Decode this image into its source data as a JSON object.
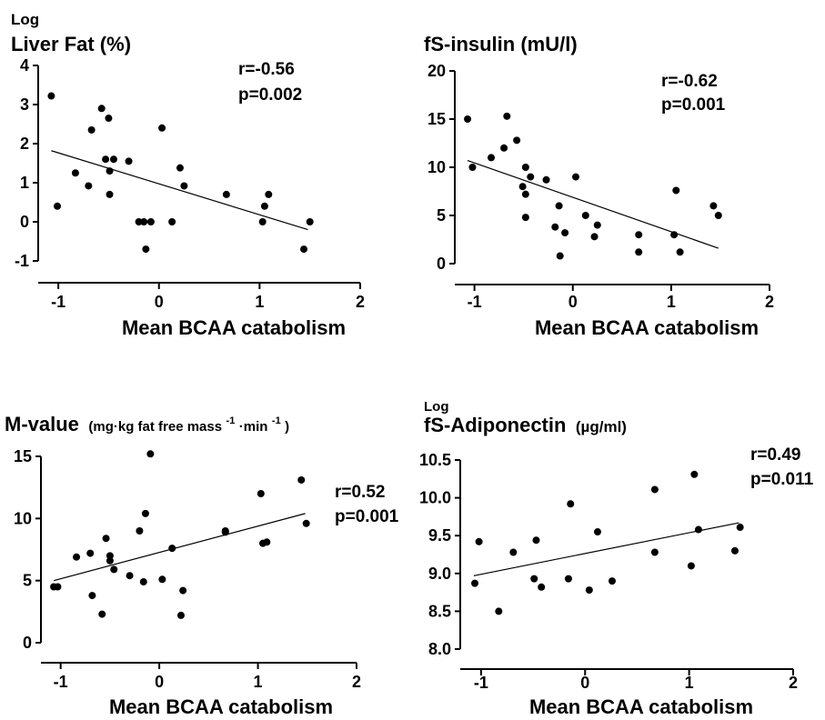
{
  "chart_data": [
    {
      "type": "scatter",
      "title_prefix": "Log",
      "title": "Liver Fat (%)",
      "title_unit": "",
      "xlabel": "Mean BCAA catabolism",
      "ylabel": "",
      "xlim": [
        -1.2,
        2
      ],
      "ylim": [
        -1,
        4
      ],
      "xticks": [
        "-1",
        "0",
        "1",
        "2"
      ],
      "yticks": [
        "-1",
        "0",
        "1",
        "2",
        "3",
        "4"
      ],
      "ytick_values": [
        -1,
        0,
        1,
        2,
        3,
        4
      ],
      "r_label": "r=-0.56",
      "p_label": "p=0.002",
      "regression": {
        "x": [
          -1.07,
          1.48
        ],
        "y": [
          1.82,
          -0.2
        ]
      },
      "points": [
        {
          "x": -1.07,
          "y": 3.22
        },
        {
          "x": -1.01,
          "y": 0.4
        },
        {
          "x": -0.83,
          "y": 1.25
        },
        {
          "x": -0.7,
          "y": 0.92
        },
        {
          "x": -0.67,
          "y": 2.35
        },
        {
          "x": -0.57,
          "y": 2.9
        },
        {
          "x": -0.53,
          "y": 1.6
        },
        {
          "x": -0.5,
          "y": 2.65
        },
        {
          "x": -0.49,
          "y": 1.3
        },
        {
          "x": -0.49,
          "y": 0.7
        },
        {
          "x": -0.45,
          "y": 1.6
        },
        {
          "x": -0.3,
          "y": 1.55
        },
        {
          "x": -0.2,
          "y": 0.0
        },
        {
          "x": -0.15,
          "y": 0.0
        },
        {
          "x": -0.13,
          "y": -0.7
        },
        {
          "x": -0.08,
          "y": 0.0
        },
        {
          "x": 0.03,
          "y": 2.4
        },
        {
          "x": 0.13,
          "y": 0.0
        },
        {
          "x": 0.21,
          "y": 1.38
        },
        {
          "x": 0.25,
          "y": 0.92
        },
        {
          "x": 0.67,
          "y": 0.7
        },
        {
          "x": 1.03,
          "y": 0.0
        },
        {
          "x": 1.05,
          "y": 0.4
        },
        {
          "x": 1.09,
          "y": 0.7
        },
        {
          "x": 1.44,
          "y": -0.7
        },
        {
          "x": 1.5,
          "y": 0.0
        }
      ]
    },
    {
      "type": "scatter",
      "title_prefix": "",
      "title": "fS-insulin (mU/l)",
      "title_unit": "",
      "xlabel": "Mean BCAA catabolism",
      "ylabel": "",
      "xlim": [
        -1.2,
        2
      ],
      "ylim": [
        0,
        20
      ],
      "xticks": [
        "-1",
        "0",
        "1",
        "2"
      ],
      "yticks": [
        "0",
        "5",
        "10",
        "15",
        "20"
      ],
      "ytick_values": [
        0,
        5,
        10,
        15,
        20
      ],
      "r_label": "r=-0.62",
      "p_label": "p=0.001",
      "regression": {
        "x": [
          -1.07,
          1.48
        ],
        "y": [
          10.7,
          1.6
        ]
      },
      "points": [
        {
          "x": -1.07,
          "y": 15.0
        },
        {
          "x": -1.02,
          "y": 10.0
        },
        {
          "x": -0.83,
          "y": 11.0
        },
        {
          "x": -0.7,
          "y": 12.0
        },
        {
          "x": -0.67,
          "y": 15.3
        },
        {
          "x": -0.57,
          "y": 12.8
        },
        {
          "x": -0.51,
          "y": 8.0
        },
        {
          "x": -0.48,
          "y": 10.0
        },
        {
          "x": -0.48,
          "y": 7.2
        },
        {
          "x": -0.48,
          "y": 4.8
        },
        {
          "x": -0.43,
          "y": 9.0
        },
        {
          "x": -0.27,
          "y": 8.7
        },
        {
          "x": -0.18,
          "y": 3.8
        },
        {
          "x": -0.14,
          "y": 6.0
        },
        {
          "x": -0.13,
          "y": 0.8
        },
        {
          "x": -0.08,
          "y": 3.2
        },
        {
          "x": 0.03,
          "y": 9.0
        },
        {
          "x": 0.13,
          "y": 5.0
        },
        {
          "x": 0.22,
          "y": 2.8
        },
        {
          "x": 0.25,
          "y": 4.0
        },
        {
          "x": 0.67,
          "y": 3.0
        },
        {
          "x": 0.67,
          "y": 1.2
        },
        {
          "x": 1.03,
          "y": 3.0
        },
        {
          "x": 1.05,
          "y": 7.6
        },
        {
          "x": 1.09,
          "y": 1.2
        },
        {
          "x": 1.43,
          "y": 6.0
        },
        {
          "x": 1.48,
          "y": 5.0
        }
      ]
    },
    {
      "type": "scatter",
      "title_prefix": "",
      "title": "M-value",
      "title_unit": "(mg·kg fat free mass",
      "title_unit_sup1": "-1",
      "title_unit_mid": "·min",
      "title_unit_sup2": "-1",
      "title_unit_end": ")",
      "xlabel": "Mean BCAA catabolism",
      "ylabel": "",
      "xlim": [
        -1.2,
        2
      ],
      "ylim": [
        0,
        15
      ],
      "xticks": [
        "-1",
        "0",
        "1",
        "2"
      ],
      "yticks": [
        "0",
        "5",
        "10",
        "15"
      ],
      "ytick_values": [
        0,
        5,
        10,
        15
      ],
      "r_label": "r=0.52",
      "p_label": "p=0.001",
      "regression": {
        "x": [
          -1.07,
          1.48
        ],
        "y": [
          5.0,
          10.4
        ]
      },
      "points": [
        {
          "x": -1.07,
          "y": 4.5
        },
        {
          "x": -1.03,
          "y": 4.5
        },
        {
          "x": -0.84,
          "y": 6.9
        },
        {
          "x": -0.7,
          "y": 7.2
        },
        {
          "x": -0.68,
          "y": 3.8
        },
        {
          "x": -0.58,
          "y": 2.3
        },
        {
          "x": -0.54,
          "y": 8.4
        },
        {
          "x": -0.5,
          "y": 7.0
        },
        {
          "x": -0.5,
          "y": 6.6
        },
        {
          "x": -0.46,
          "y": 5.9
        },
        {
          "x": -0.3,
          "y": 5.4
        },
        {
          "x": -0.2,
          "y": 9.0
        },
        {
          "x": -0.16,
          "y": 4.9
        },
        {
          "x": -0.14,
          "y": 10.4
        },
        {
          "x": -0.09,
          "y": 15.2
        },
        {
          "x": 0.03,
          "y": 5.1
        },
        {
          "x": 0.13,
          "y": 7.6
        },
        {
          "x": 0.22,
          "y": 2.2
        },
        {
          "x": 0.24,
          "y": 4.2
        },
        {
          "x": 0.67,
          "y": 8.9
        },
        {
          "x": 0.67,
          "y": 9.0
        },
        {
          "x": 1.03,
          "y": 12.0
        },
        {
          "x": 1.05,
          "y": 8.0
        },
        {
          "x": 1.09,
          "y": 8.1
        },
        {
          "x": 1.44,
          "y": 13.1
        },
        {
          "x": 1.49,
          "y": 9.6
        }
      ]
    },
    {
      "type": "scatter",
      "title_prefix": "Log",
      "title": "fS-Adiponectin",
      "title_unit": "(µg/ml)",
      "xlabel": "Mean BCAA catabolism",
      "ylabel": "",
      "xlim": [
        -1.2,
        2
      ],
      "ylim": [
        8.0,
        10.5
      ],
      "xticks": [
        "-1",
        "0",
        "1",
        "2"
      ],
      "yticks": [
        "8.0",
        "8.5",
        "9.0",
        "9.5",
        "10.0",
        "10.5"
      ],
      "ytick_values": [
        8.0,
        8.5,
        9.0,
        9.5,
        10.0,
        10.5
      ],
      "r_label": "r=0.49",
      "p_label": "p=0.011",
      "regression": {
        "x": [
          -1.07,
          1.48
        ],
        "y": [
          8.97,
          9.67
        ]
      },
      "points": [
        {
          "x": -1.06,
          "y": 8.87
        },
        {
          "x": -1.02,
          "y": 9.42
        },
        {
          "x": -0.83,
          "y": 8.5
        },
        {
          "x": -0.69,
          "y": 9.28
        },
        {
          "x": -0.49,
          "y": 8.93
        },
        {
          "x": -0.47,
          "y": 9.44
        },
        {
          "x": -0.42,
          "y": 8.82
        },
        {
          "x": -0.16,
          "y": 8.93
        },
        {
          "x": -0.14,
          "y": 9.92
        },
        {
          "x": 0.04,
          "y": 8.78
        },
        {
          "x": 0.12,
          "y": 9.55
        },
        {
          "x": 0.26,
          "y": 8.9
        },
        {
          "x": 0.67,
          "y": 9.28
        },
        {
          "x": 0.67,
          "y": 10.11
        },
        {
          "x": 1.02,
          "y": 9.1
        },
        {
          "x": 1.05,
          "y": 10.31
        },
        {
          "x": 1.09,
          "y": 9.58
        },
        {
          "x": 1.44,
          "y": 9.3
        },
        {
          "x": 1.49,
          "y": 9.61
        }
      ]
    }
  ]
}
